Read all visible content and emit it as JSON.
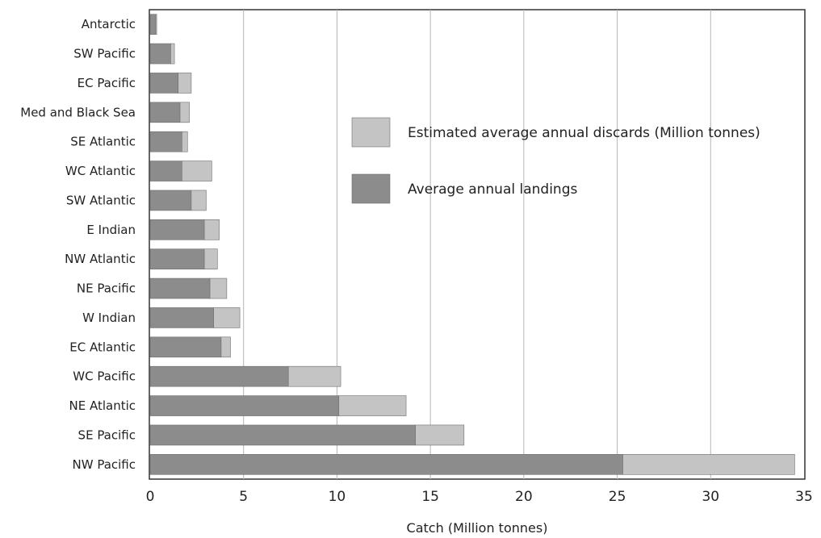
{
  "chart_data": {
    "type": "bar",
    "orientation": "horizontal",
    "stacked": true,
    "categories": [
      "Antarctic",
      "SW Pacific",
      "EC Pacific",
      "Med and Black Sea",
      "SE Atlantic",
      "WC Atlantic",
      "SW Atlantic",
      "E Indian",
      "NW Atlantic",
      "NE Pacific",
      "W Indian",
      "EC Atlantic",
      "WC Pacific",
      "NE Atlantic",
      "SE Pacific",
      "NW Pacific"
    ],
    "series": [
      {
        "name": "Average annual landings",
        "color": "#8c8c8c",
        "values": [
          0.3,
          1.1,
          1.5,
          1.6,
          1.7,
          1.7,
          2.2,
          2.9,
          2.9,
          3.2,
          3.4,
          3.8,
          7.4,
          10.1,
          14.2,
          25.3
        ]
      },
      {
        "name": "Estimated average annual discards (Million tonnes)",
        "color": "#c4c4c4",
        "values": [
          0.05,
          0.2,
          0.7,
          0.5,
          0.3,
          1.6,
          0.8,
          0.8,
          0.7,
          0.9,
          1.4,
          0.5,
          2.8,
          3.6,
          2.6,
          9.2
        ]
      }
    ],
    "xlabel": "Catch (Million tonnes)",
    "ylabel": "",
    "xlim": [
      0,
      35
    ],
    "xticks": [
      0,
      5,
      10,
      15,
      20,
      25,
      30,
      35
    ],
    "grid": "vertical",
    "legend_position": "center-right",
    "legend_order": [
      1,
      0
    ]
  }
}
